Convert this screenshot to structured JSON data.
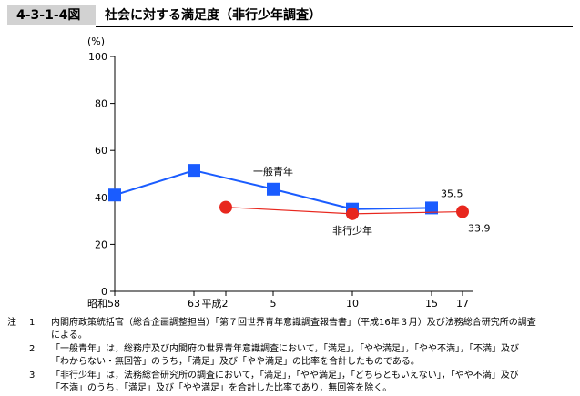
{
  "figure": {
    "number": "4-3-1-4図",
    "title": "社会に対する満足度（非行少年調査）"
  },
  "chart_data": {
    "type": "line",
    "ylabel_unit": "(%)",
    "ylim": [
      0,
      100
    ],
    "yticks": [
      "0",
      "20",
      "40",
      "60",
      "80",
      "100"
    ],
    "x_labels": [
      "昭和58",
      "63",
      "平成2",
      "5",
      "10",
      "15",
      "17"
    ],
    "grid": false,
    "series": [
      {
        "name": "一般青年",
        "color": "#1a5cff",
        "marker": "square",
        "x": [
          "昭和58",
          "63",
          "5",
          "10",
          "15"
        ],
        "values": [
          41.0,
          51.5,
          43.5,
          35.0,
          35.5
        ],
        "end_label": "35.5"
      },
      {
        "name": "非行少年",
        "color": "#e8271e",
        "marker": "circle",
        "x": [
          "平成2",
          "10",
          "17"
        ],
        "values": [
          35.8,
          33.0,
          33.9
        ],
        "end_label": "33.9"
      }
    ]
  },
  "notes": {
    "mark": "注",
    "items": [
      {
        "num": "1",
        "line1": "内閣府政策統括官（総合企画調整担当）「第７回世界青年意識調査報告書」（平成16年３月）及び法務総合研究所の調査",
        "line2": "による。"
      },
      {
        "num": "2",
        "line1": "「一般青年」は，総務庁及び内閣府の世界青年意識調査において，「満足」，「やや満足」，「やや不満」，「不満」及び",
        "line2": "「わからない・無回答」のうち，「満足」及び「やや満足」の比率を合計したものである。"
      },
      {
        "num": "3",
        "line1": "「非行少年」は，法務総合研究所の調査において，「満足」，「やや満足」，「どちらともいえない」，「やや不満」及び",
        "line2": "「不満」のうち，「満足」及び「やや満足」を合計した比率であり，無回答を除く。"
      }
    ]
  }
}
